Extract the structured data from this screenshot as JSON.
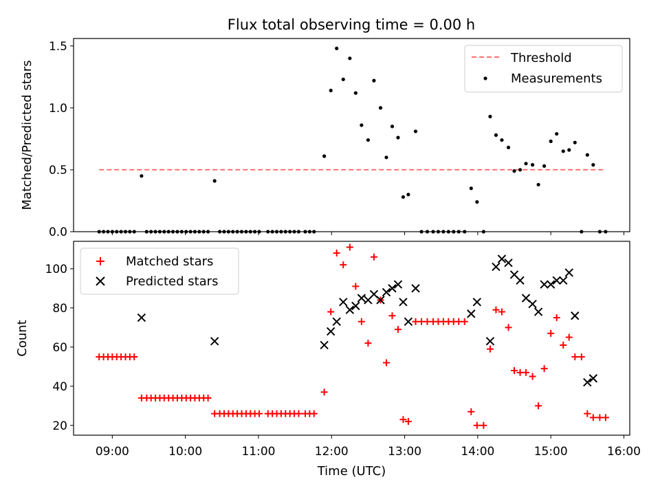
{
  "title": "Flux total observing time = 0.00 h",
  "colors": {
    "threshold": "#ff7070",
    "measurement": "#000000",
    "matched": "#ff0000",
    "predicted": "#000000"
  },
  "chart_data": [
    {
      "type": "scatter",
      "ylabel": "Matched/Predicted stars",
      "xlim": [
        8.47,
        16.08
      ],
      "ylim": [
        0,
        1.56
      ],
      "yticks": [
        0.0,
        0.5,
        1.0,
        1.5
      ],
      "ytick_labels": [
        "0.0",
        "0.5",
        "1.0",
        "1.5"
      ],
      "legend": {
        "placement": "top-right",
        "threshold_label": "Threshold",
        "measurements_label": "Measurements"
      },
      "threshold": {
        "value": 0.5,
        "x_range": [
          8.82,
          15.75
        ]
      },
      "measurements": {
        "x": [
          8.82,
          8.88,
          8.94,
          9.0,
          9.06,
          9.12,
          9.18,
          9.24,
          9.3,
          9.4,
          9.47,
          9.53,
          9.59,
          9.65,
          9.71,
          9.77,
          9.83,
          9.89,
          9.95,
          10.01,
          10.07,
          10.13,
          10.19,
          10.25,
          10.31,
          10.4,
          10.47,
          10.53,
          10.59,
          10.65,
          10.71,
          10.77,
          10.83,
          10.89,
          10.95,
          11.01,
          11.13,
          11.19,
          11.25,
          11.31,
          11.37,
          11.43,
          11.49,
          11.55,
          11.64,
          11.7,
          11.76,
          11.9,
          11.99,
          12.07,
          12.16,
          12.25,
          12.33,
          12.41,
          12.5,
          12.58,
          12.67,
          12.75,
          12.83,
          12.91,
          12.98,
          13.05,
          13.15,
          13.23,
          13.31,
          13.39,
          13.46,
          13.53,
          13.6,
          13.67,
          13.74,
          13.82,
          13.91,
          13.99,
          14.08,
          14.17,
          14.25,
          14.33,
          14.42,
          14.5,
          14.58,
          14.66,
          14.75,
          14.83,
          14.91,
          15.0,
          15.08,
          15.17,
          15.25,
          15.33,
          15.42,
          15.5,
          15.58,
          15.67,
          15.75
        ],
        "y": [
          0,
          0,
          0,
          0,
          0,
          0,
          0,
          0,
          0,
          0.45,
          0,
          0,
          0,
          0,
          0,
          0,
          0,
          0,
          0,
          0,
          0,
          0,
          0,
          0,
          0,
          0.41,
          0,
          0,
          0,
          0,
          0,
          0,
          0,
          0,
          0,
          0,
          0,
          0,
          0,
          0,
          0,
          0,
          0,
          0,
          0,
          0,
          0,
          0.61,
          1.14,
          1.48,
          1.23,
          1.4,
          1.12,
          0.86,
          0.74,
          1.22,
          1.0,
          0.6,
          0.85,
          0.76,
          0.28,
          0.3,
          0.81,
          0,
          0,
          0,
          0,
          0,
          0,
          0,
          0,
          0,
          0.35,
          0.24,
          0,
          0.93,
          0.78,
          0.74,
          0.68,
          0.49,
          0.5,
          0.55,
          0.54,
          0.38,
          0.53,
          0.73,
          0.79,
          0.65,
          0.66,
          0.72,
          0,
          0.62,
          0.54,
          0,
          0
        ]
      }
    },
    {
      "type": "scatter",
      "xlabel": "Time (UTC)",
      "ylabel": "Count",
      "xlim": [
        8.47,
        16.08
      ],
      "ylim": [
        15,
        114
      ],
      "xticks": [
        9,
        10,
        11,
        12,
        13,
        14,
        15,
        16
      ],
      "xtick_labels": [
        "09:00",
        "10:00",
        "11:00",
        "12:00",
        "13:00",
        "14:00",
        "15:00",
        "16:00"
      ],
      "yticks": [
        20,
        40,
        60,
        80,
        100
      ],
      "ytick_labels": [
        "20",
        "40",
        "60",
        "80",
        "100"
      ],
      "legend": {
        "placement": "top-left",
        "matched_label": "Matched stars",
        "predicted_label": "Predicted stars"
      },
      "series": [
        {
          "name": "Matched stars",
          "x": [
            8.82,
            8.88,
            8.94,
            9.0,
            9.06,
            9.12,
            9.18,
            9.24,
            9.3,
            9.4,
            9.47,
            9.53,
            9.59,
            9.65,
            9.71,
            9.77,
            9.83,
            9.89,
            9.95,
            10.01,
            10.07,
            10.13,
            10.19,
            10.25,
            10.31,
            10.4,
            10.47,
            10.53,
            10.59,
            10.65,
            10.71,
            10.77,
            10.83,
            10.89,
            10.95,
            11.01,
            11.13,
            11.19,
            11.25,
            11.31,
            11.37,
            11.43,
            11.49,
            11.55,
            11.64,
            11.7,
            11.76,
            11.9,
            11.99,
            12.07,
            12.16,
            12.25,
            12.33,
            12.41,
            12.5,
            12.58,
            12.67,
            12.75,
            12.83,
            12.91,
            12.98,
            13.05,
            13.15,
            13.23,
            13.31,
            13.39,
            13.46,
            13.53,
            13.6,
            13.67,
            13.74,
            13.82,
            13.91,
            13.99,
            14.08,
            14.17,
            14.25,
            14.33,
            14.42,
            14.5,
            14.58,
            14.66,
            14.75,
            14.83,
            14.91,
            15.0,
            15.08,
            15.17,
            15.25,
            15.33,
            15.42,
            15.5,
            15.58,
            15.67,
            15.75
          ],
          "y": [
            55,
            55,
            55,
            55,
            55,
            55,
            55,
            55,
            55,
            34,
            34,
            34,
            34,
            34,
            34,
            34,
            34,
            34,
            34,
            34,
            34,
            34,
            34,
            34,
            34,
            26,
            26,
            26,
            26,
            26,
            26,
            26,
            26,
            26,
            26,
            26,
            26,
            26,
            26,
            26,
            26,
            26,
            26,
            26,
            26,
            26,
            26,
            37,
            78,
            108,
            102,
            111,
            91,
            73,
            62,
            106,
            84,
            52,
            76,
            69,
            23,
            22,
            73,
            73,
            73,
            73,
            73,
            73,
            73,
            73,
            73,
            73,
            27,
            20,
            20,
            59,
            79,
            78,
            70,
            48,
            47,
            47,
            45,
            30,
            49,
            67,
            75,
            61,
            65,
            55,
            55,
            26,
            24,
            24,
            24
          ]
        },
        {
          "name": "Predicted stars",
          "x": [
            9.4,
            10.4,
            11.9,
            11.99,
            12.07,
            12.16,
            12.25,
            12.33,
            12.41,
            12.5,
            12.58,
            12.67,
            12.75,
            12.83,
            12.91,
            12.98,
            13.05,
            13.15,
            13.91,
            13.99,
            14.17,
            14.25,
            14.33,
            14.42,
            14.5,
            14.58,
            14.66,
            14.75,
            14.83,
            14.91,
            15.0,
            15.08,
            15.17,
            15.25,
            15.33,
            15.5,
            15.58
          ],
          "y": [
            75,
            63,
            61,
            68,
            73,
            83,
            79,
            81,
            85,
            84,
            87,
            84,
            88,
            90,
            92,
            83,
            73,
            90,
            77,
            83,
            63,
            101,
            105,
            103,
            97,
            94,
            85,
            82,
            78,
            92,
            92,
            94,
            94,
            98,
            76,
            42,
            44
          ]
        }
      ]
    }
  ]
}
